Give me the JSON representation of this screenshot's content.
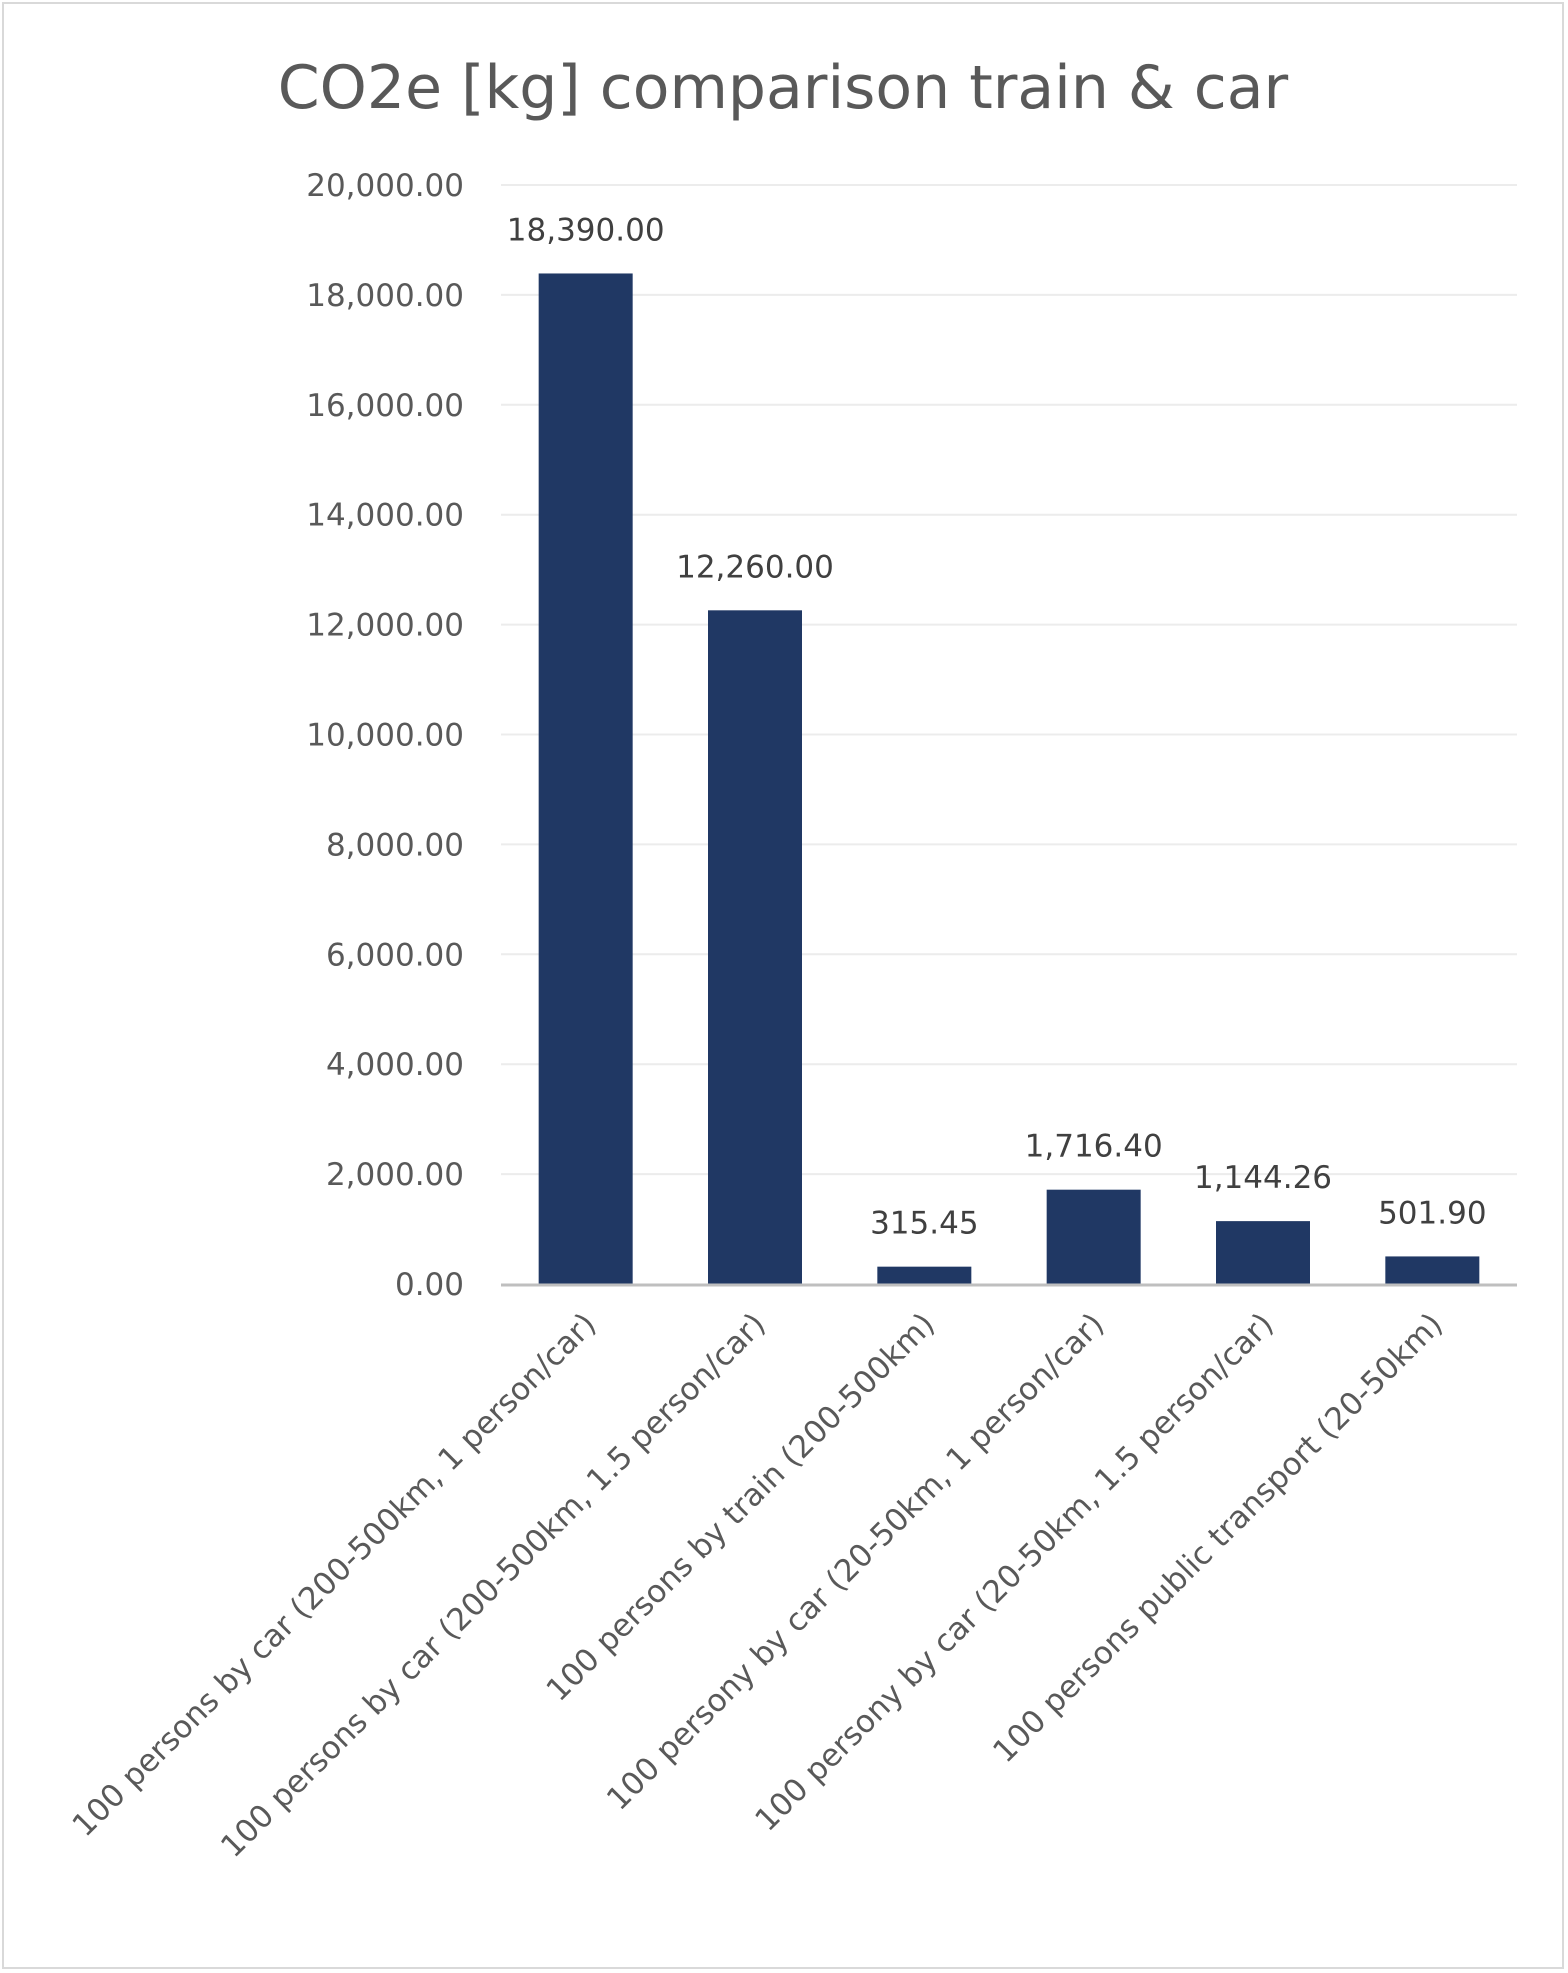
{
  "chart_data": {
    "type": "bar",
    "title": "CO2e [kg] comparison train & car",
    "xlabel": "",
    "ylabel": "",
    "categories": [
      "100 persons by car (200-500km, 1 person/car)",
      "100 persons by car (200-500km, 1.5 person/car)",
      "100 persons by train (200-500km)",
      "100 persony by car (20-50km, 1 person/car)",
      "100 persony by car (20-50km, 1.5 person/car)",
      "100 persons public transport (20-50km)"
    ],
    "values": [
      18390.0,
      12260.0,
      315.45,
      1716.4,
      1144.26,
      501.9
    ],
    "value_labels": [
      "18,390.00",
      "12,260.00",
      "315.45",
      "1,716.40",
      "1,144.26",
      "501.90"
    ],
    "ylim": [
      0,
      20000
    ],
    "yticks": [
      0,
      2000,
      4000,
      6000,
      8000,
      10000,
      12000,
      14000,
      16000,
      18000,
      20000
    ],
    "ytick_labels": [
      "0.00",
      "2,000.00",
      "4,000.00",
      "6,000.00",
      "8,000.00",
      "10,000.00",
      "12,000.00",
      "14,000.00",
      "16,000.00",
      "18,000.00",
      "20,000.00"
    ],
    "grid": true,
    "legend": "none",
    "colors": {
      "bar": "#203864",
      "grid": "#ececec",
      "axis": "#bfbfbf",
      "text": "#595959",
      "data_label": "#404040"
    }
  }
}
